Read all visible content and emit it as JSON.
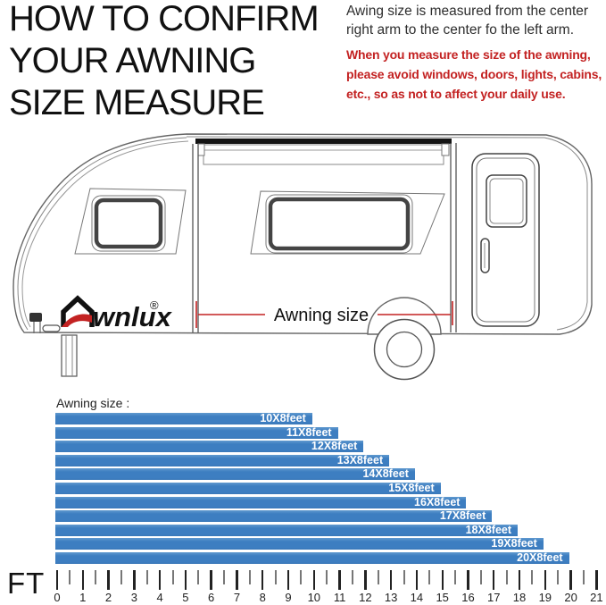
{
  "header": {
    "title": "HOW TO CONFIRM\nYOUR AWNING\nSIZE MEASURE",
    "note_black": "Awing size is measured from the center\nright arm to the center fo the left arm.",
    "note_red": "When you measure the size of the awning,\nplease avoid windows, doors, lights, cabins,\netc., so as not to affect your daily use."
  },
  "diagram": {
    "dimension_label": "Awning size",
    "brand_text": "wnlux",
    "registered_mark": "®"
  },
  "chart_data": {
    "type": "bar",
    "orientation": "horizontal",
    "title": "Awning size :",
    "unit_label": "FT",
    "categories": [
      "10X8feet",
      "11X8feet",
      "12X8feet",
      "13X8feet",
      "14X8feet",
      "15X8feet",
      "16X8feet",
      "17X8feet",
      "18X8feet",
      "19X8feet",
      "20X8feet"
    ],
    "values": [
      10,
      11,
      12,
      13,
      14,
      15,
      16,
      17,
      18,
      19,
      20
    ],
    "xlabel": "feet",
    "xlim": [
      0,
      21
    ],
    "x_ticks": [
      0,
      1,
      2,
      3,
      4,
      5,
      6,
      7,
      8,
      9,
      10,
      11,
      12,
      13,
      14,
      15,
      16,
      17,
      18,
      19,
      20,
      21
    ],
    "minor_ticks_every": 0.5,
    "grid": false,
    "legend": "none",
    "bar_color": "#3d7ec1",
    "bar_label_color": "#ffffff"
  },
  "colors": {
    "accent_red": "#c32222",
    "bar_blue": "#3d7ec1",
    "text_dark": "#111111",
    "line_art": "#666666"
  }
}
